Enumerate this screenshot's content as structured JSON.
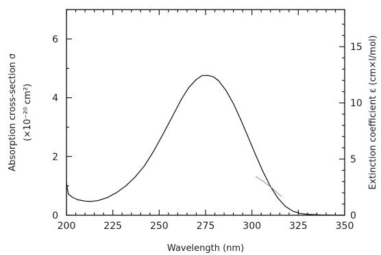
{
  "chart_data": {
    "type": "line",
    "xlabel": "Wavelength (nm)",
    "ylabel_left": "Absorption cross-section σ",
    "ylabel_left_units": "(×10⁻²⁰ cm²)",
    "ylabel_right": "Extinction coefficient ε (cm×l/mol)",
    "xlim": [
      200,
      350
    ],
    "ylim_left": [
      0,
      7
    ],
    "ylim_right": [
      0,
      18.3
    ],
    "x_ticks": [
      200,
      225,
      250,
      275,
      300,
      325,
      350
    ],
    "y_ticks_left": [
      0,
      2,
      4,
      6
    ],
    "y_ticks_right": [
      0,
      5,
      10,
      15
    ],
    "x_tick_labels": [
      "200",
      "225",
      "250",
      "275",
      "300",
      "325",
      "350"
    ],
    "y_tick_labels_left": [
      "0",
      "2",
      "4",
      "6"
    ],
    "y_tick_labels_right": [
      "0",
      "5",
      "10",
      "15"
    ],
    "grid": false,
    "series": [
      {
        "x": [
          200,
          201,
          203,
          206,
          210,
          213,
          217,
          222,
          227,
          232,
          237,
          242,
          247,
          252,
          257,
          262,
          266,
          270,
          273,
          276,
          279,
          282,
          286,
          290,
          294,
          298,
          302,
          306,
          310,
          314,
          318,
          322,
          326,
          330,
          334,
          338,
          342,
          346,
          350
        ],
        "values": [
          1.1,
          0.72,
          0.62,
          0.53,
          0.48,
          0.47,
          0.5,
          0.6,
          0.77,
          1.0,
          1.3,
          1.68,
          2.18,
          2.75,
          3.35,
          3.95,
          4.35,
          4.62,
          4.75,
          4.76,
          4.72,
          4.58,
          4.25,
          3.8,
          3.25,
          2.65,
          2.05,
          1.48,
          0.98,
          0.58,
          0.3,
          0.14,
          0.06,
          0.03,
          0.02,
          0.01,
          0.01,
          0.0,
          0.0
        ]
      },
      {
        "x": [
          302,
          306,
          311,
          316
        ],
        "values": [
          1.32,
          1.16,
          0.92,
          0.63
        ]
      }
    ]
  }
}
